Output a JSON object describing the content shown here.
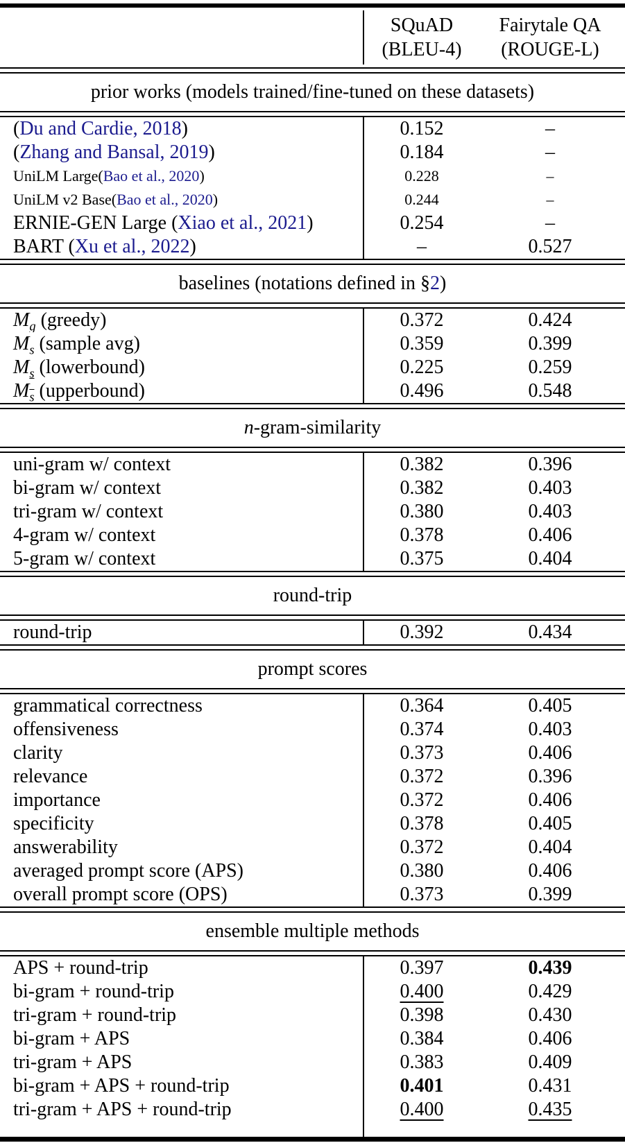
{
  "colors": {
    "citation_link": "#1b1b8e",
    "text": "#000000",
    "rule": "#000000",
    "background": "#ffffff"
  },
  "header": {
    "col1": [
      "SQuAD",
      "(BLEU-4)"
    ],
    "col2": [
      "Fairytale QA",
      "(ROUGE-L)"
    ]
  },
  "sections": [
    {
      "title": [
        {
          "t": "p",
          "x": "prior works (models trained/fine-tuned on these datasets)"
        }
      ],
      "rows": [
        {
          "label": [
            {
              "t": "p",
              "x": "("
            },
            {
              "t": "c",
              "x": "Du and Cardie, 2018"
            },
            {
              "t": "p",
              "x": ")"
            }
          ],
          "v1": "0.152",
          "v2": "–"
        },
        {
          "label": [
            {
              "t": "p",
              "x": "("
            },
            {
              "t": "c",
              "x": "Zhang and Bansal, 2019"
            },
            {
              "t": "p",
              "x": ")"
            }
          ],
          "v1": "0.184",
          "v2": "–"
        },
        {
          "small": true,
          "label": [
            {
              "t": "p",
              "x": "UniLM Large("
            },
            {
              "t": "c",
              "x": "Bao et al., 2020"
            },
            {
              "t": "p",
              "x": ")"
            }
          ],
          "v1": "0.228",
          "v2": "–"
        },
        {
          "small": true,
          "label": [
            {
              "t": "p",
              "x": "UniLM v2 Base("
            },
            {
              "t": "c",
              "x": "Bao et al., 2020"
            },
            {
              "t": "p",
              "x": ")"
            }
          ],
          "v1": "0.244",
          "v2": "–"
        },
        {
          "label": [
            {
              "t": "p",
              "x": "ERNIE-GEN Large ("
            },
            {
              "t": "c",
              "x": "Xiao et al., 2021"
            },
            {
              "t": "p",
              "x": ")"
            }
          ],
          "v1": "0.254",
          "v2": "–"
        },
        {
          "label": [
            {
              "t": "p",
              "x": "BART ("
            },
            {
              "t": "c",
              "x": "Xu et al., 2022"
            },
            {
              "t": "p",
              "x": ")"
            }
          ],
          "v1": "–",
          "v2": "0.527"
        }
      ]
    },
    {
      "title": [
        {
          "t": "p",
          "x": "baselines (notations defined in §"
        },
        {
          "t": "r",
          "x": "2"
        },
        {
          "t": "p",
          "x": ")"
        }
      ],
      "rows": [
        {
          "label": [
            {
              "t": "i",
              "x": "M"
            },
            {
              "t": "sub",
              "x": "g"
            },
            {
              "t": "p",
              "x": " (greedy)"
            }
          ],
          "v1": "0.372",
          "v2": "0.424"
        },
        {
          "label": [
            {
              "t": "i",
              "x": "M"
            },
            {
              "t": "sub",
              "x": "s"
            },
            {
              "t": "p",
              "x": " (sample avg)"
            }
          ],
          "v1": "0.359",
          "v2": "0.399"
        },
        {
          "label": [
            {
              "t": "i",
              "x": "M"
            },
            {
              "t": "subu",
              "x": "s"
            },
            {
              "t": "p",
              "x": " (lowerbound)"
            }
          ],
          "v1": "0.225",
          "v2": "0.259"
        },
        {
          "label": [
            {
              "t": "i",
              "x": "M"
            },
            {
              "t": "subo",
              "x": "s"
            },
            {
              "t": "p",
              "x": " (upperbound)"
            }
          ],
          "v1": "0.496",
          "v2": "0.548"
        }
      ]
    },
    {
      "title": [
        {
          "t": "i",
          "x": "n"
        },
        {
          "t": "p",
          "x": "-gram-similarity"
        }
      ],
      "rows": [
        {
          "label": [
            {
              "t": "p",
              "x": "uni-gram w/ context"
            }
          ],
          "v1": "0.382",
          "v2": "0.396"
        },
        {
          "label": [
            {
              "t": "p",
              "x": "bi-gram w/ context"
            }
          ],
          "v1": "0.382",
          "v2": "0.403"
        },
        {
          "label": [
            {
              "t": "p",
              "x": "tri-gram w/ context"
            }
          ],
          "v1": "0.380",
          "v2": "0.403"
        },
        {
          "label": [
            {
              "t": "p",
              "x": "4-gram w/ context"
            }
          ],
          "v1": "0.378",
          "v2": "0.406"
        },
        {
          "label": [
            {
              "t": "p",
              "x": "5-gram w/ context"
            }
          ],
          "v1": "0.375",
          "v2": "0.404"
        }
      ]
    },
    {
      "title": [
        {
          "t": "p",
          "x": "round-trip"
        }
      ],
      "rows": [
        {
          "label": [
            {
              "t": "p",
              "x": "round-trip"
            }
          ],
          "v1": "0.392",
          "v2": "0.434"
        }
      ]
    },
    {
      "title": [
        {
          "t": "p",
          "x": "prompt scores"
        }
      ],
      "rows": [
        {
          "label": [
            {
              "t": "p",
              "x": "grammatical correctness"
            }
          ],
          "v1": "0.364",
          "v2": "0.405"
        },
        {
          "label": [
            {
              "t": "p",
              "x": "offensiveness"
            }
          ],
          "v1": "0.374",
          "v2": "0.403"
        },
        {
          "label": [
            {
              "t": "p",
              "x": "clarity"
            }
          ],
          "v1": "0.373",
          "v2": "0.406"
        },
        {
          "label": [
            {
              "t": "p",
              "x": "relevance"
            }
          ],
          "v1": "0.372",
          "v2": "0.396"
        },
        {
          "label": [
            {
              "t": "p",
              "x": "importance"
            }
          ],
          "v1": "0.372",
          "v2": "0.406"
        },
        {
          "label": [
            {
              "t": "p",
              "x": "specificity"
            }
          ],
          "v1": "0.378",
          "v2": "0.405"
        },
        {
          "label": [
            {
              "t": "p",
              "x": "answerability"
            }
          ],
          "v1": "0.372",
          "v2": "0.404"
        },
        {
          "label": [
            {
              "t": "p",
              "x": "averaged prompt score (APS)"
            }
          ],
          "v1": "0.380",
          "v2": "0.406"
        },
        {
          "label": [
            {
              "t": "p",
              "x": "overall prompt score (OPS)"
            }
          ],
          "v1": "0.373",
          "v2": "0.399"
        }
      ]
    },
    {
      "title": [
        {
          "t": "p",
          "x": "ensemble multiple methods"
        }
      ],
      "rows": [
        {
          "label": [
            {
              "t": "p",
              "x": "APS + round-trip"
            }
          ],
          "v1": "0.397",
          "v2": {
            "x": "0.439",
            "style": "bold"
          }
        },
        {
          "label": [
            {
              "t": "p",
              "x": "bi-gram + round-trip"
            }
          ],
          "v1": {
            "x": "0.400",
            "style": "underline"
          },
          "v2": "0.429"
        },
        {
          "label": [
            {
              "t": "p",
              "x": "tri-gram + round-trip"
            }
          ],
          "v1": "0.398",
          "v2": "0.430"
        },
        {
          "label": [
            {
              "t": "p",
              "x": "bi-gram + APS"
            }
          ],
          "v1": "0.384",
          "v2": "0.406"
        },
        {
          "label": [
            {
              "t": "p",
              "x": "tri-gram + APS"
            }
          ],
          "v1": "0.383",
          "v2": "0.409"
        },
        {
          "label": [
            {
              "t": "p",
              "x": "bi-gram + APS + round-trip"
            }
          ],
          "v1": {
            "x": "0.401",
            "style": "bold"
          },
          "v2": "0.431"
        },
        {
          "label": [
            {
              "t": "p",
              "x": "tri-gram + APS + round-trip"
            }
          ],
          "v1": {
            "x": "0.400",
            "style": "underline"
          },
          "v2": {
            "x": "0.435",
            "style": "underline"
          }
        }
      ]
    }
  ]
}
